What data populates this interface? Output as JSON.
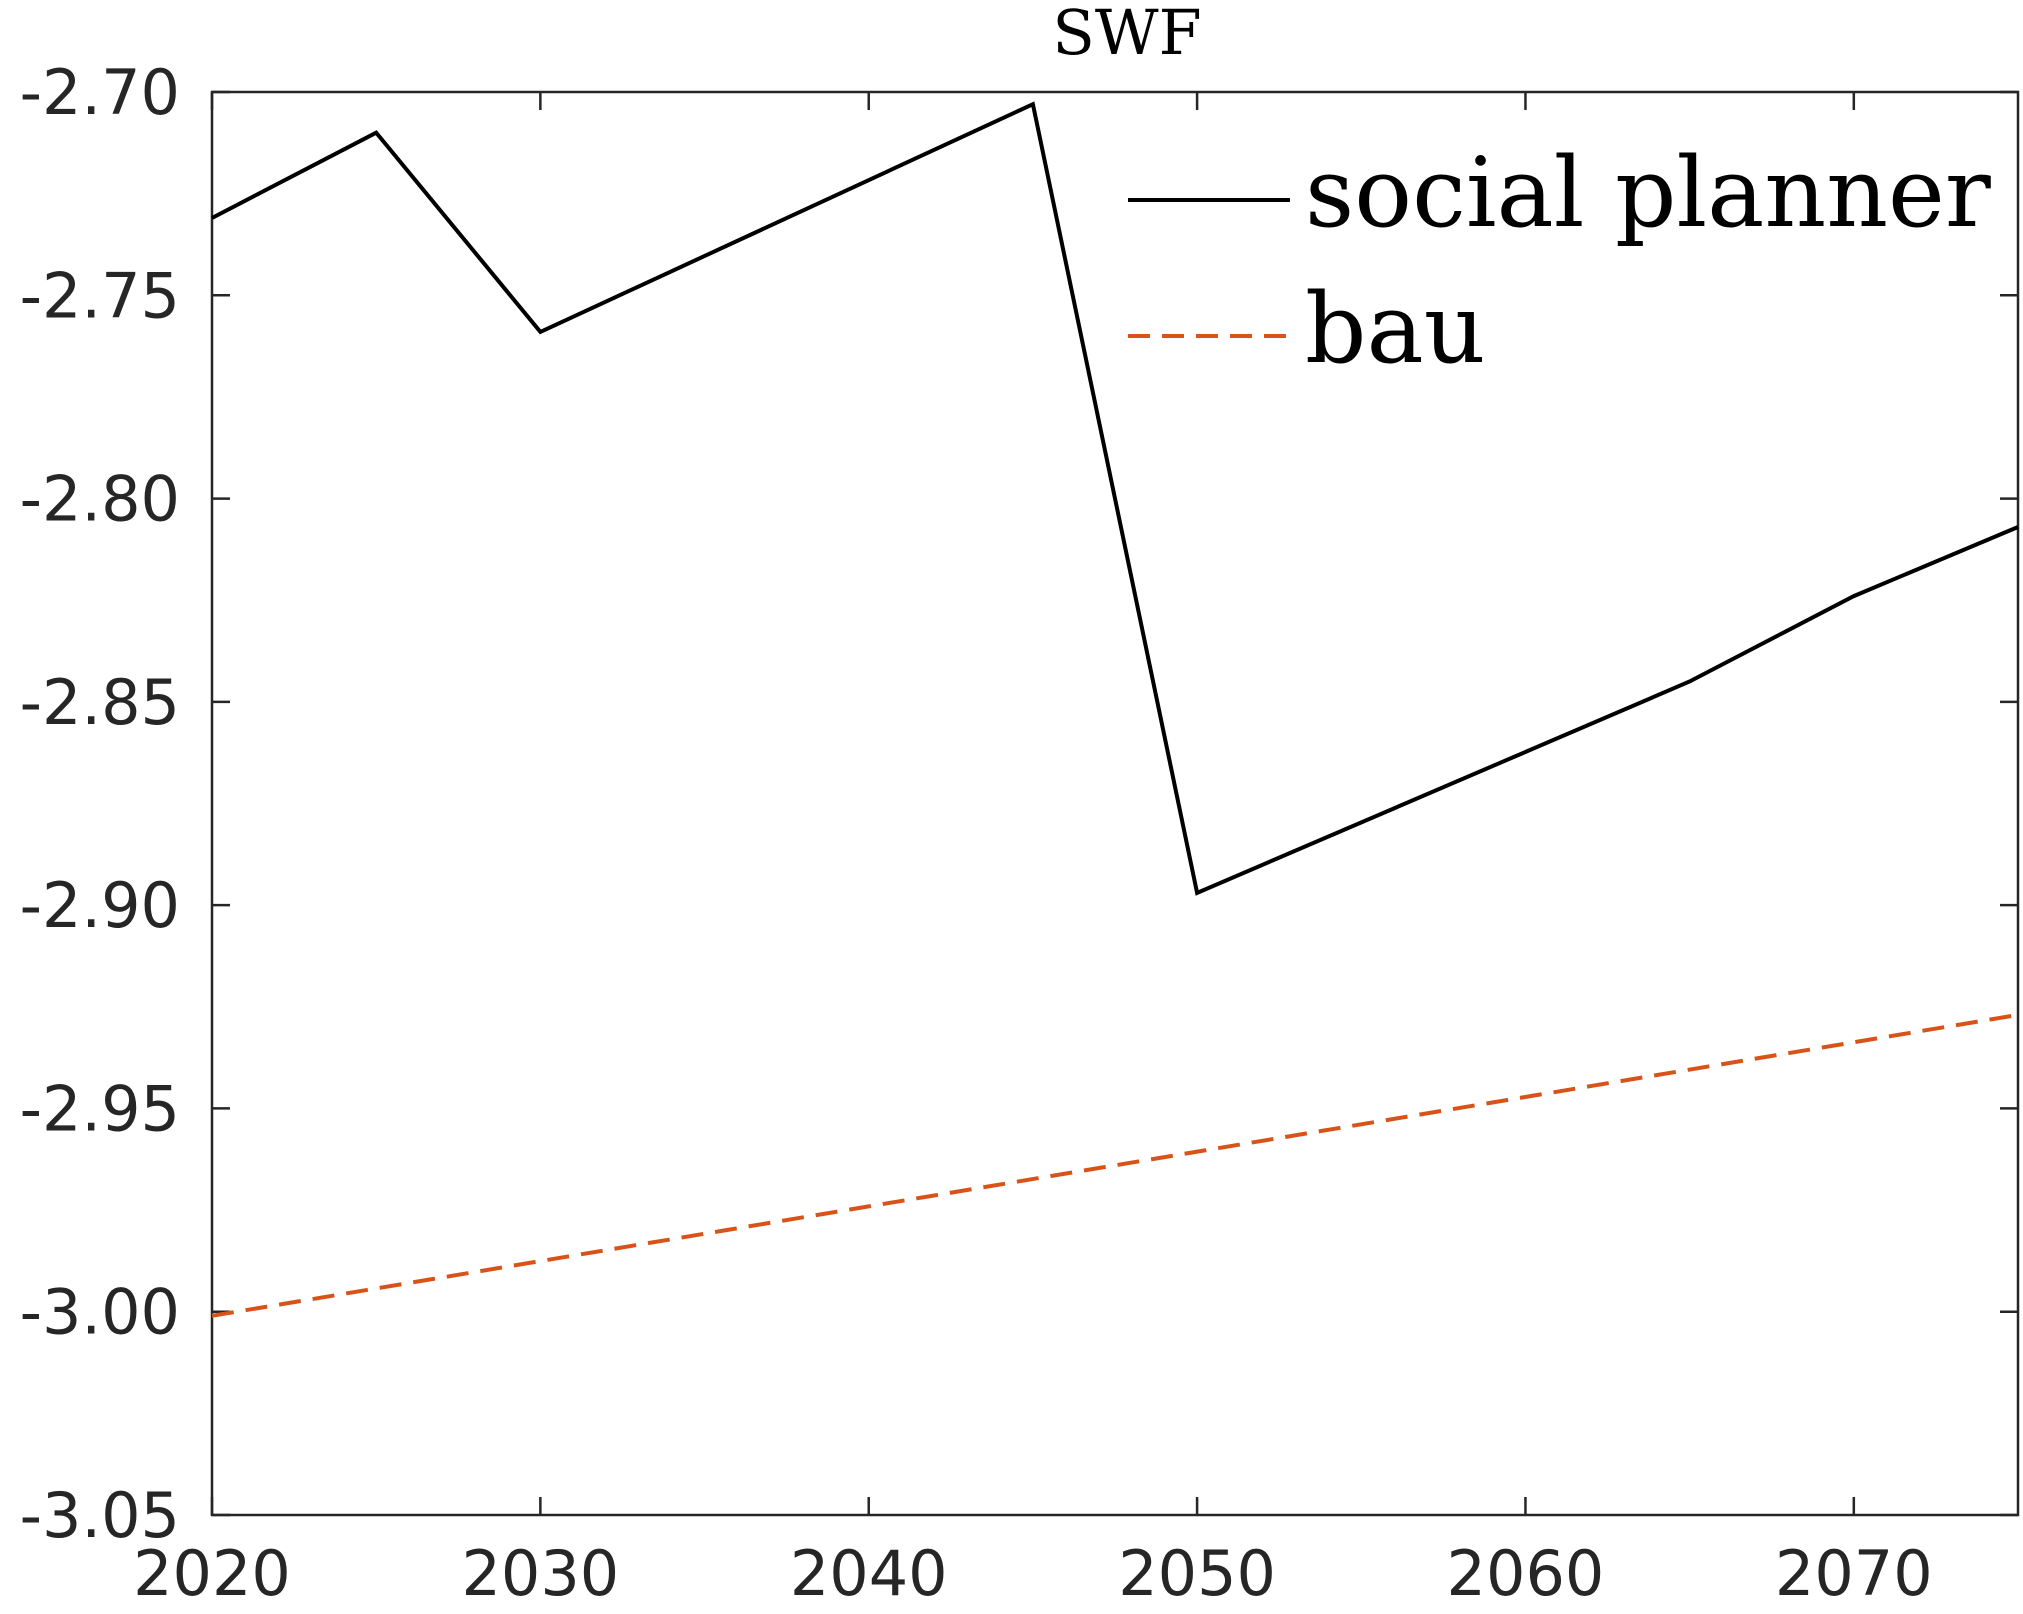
{
  "chart_data": {
    "type": "line",
    "title": "SWF",
    "xlabel": "",
    "ylabel": "",
    "xlim": [
      2020,
      2075
    ],
    "ylim": [
      -3.05,
      -2.7
    ],
    "x_ticks": [
      2020,
      2030,
      2040,
      2050,
      2060,
      2070
    ],
    "x_tick_labels": [
      "2020",
      "2030",
      "2040",
      "2050",
      "2060",
      "2070"
    ],
    "y_ticks": [
      -2.7,
      -2.75,
      -2.8,
      -2.85,
      -2.9,
      -2.95,
      -3.0,
      -3.05
    ],
    "y_tick_labels": [
      "-2.70",
      "-2.75",
      "-2.80",
      "-2.85",
      "-2.90",
      "-2.95",
      "-3.00",
      "-3.05"
    ],
    "grid": false,
    "legend_position": "top-right",
    "series": [
      {
        "name": "social planner",
        "color": "#000000",
        "style": "solid",
        "x": [
          2020,
          2025,
          2030,
          2045,
          2050,
          2065,
          2070,
          2075
        ],
        "y": [
          -2.731,
          -2.71,
          -2.759,
          -2.703,
          -2.897,
          -2.845,
          -2.824,
          -2.807
        ]
      },
      {
        "name": "bau",
        "color": "#D95319",
        "style": "dashed",
        "x": [
          2020,
          2075
        ],
        "y": [
          -3.001,
          -2.927
        ]
      }
    ]
  }
}
